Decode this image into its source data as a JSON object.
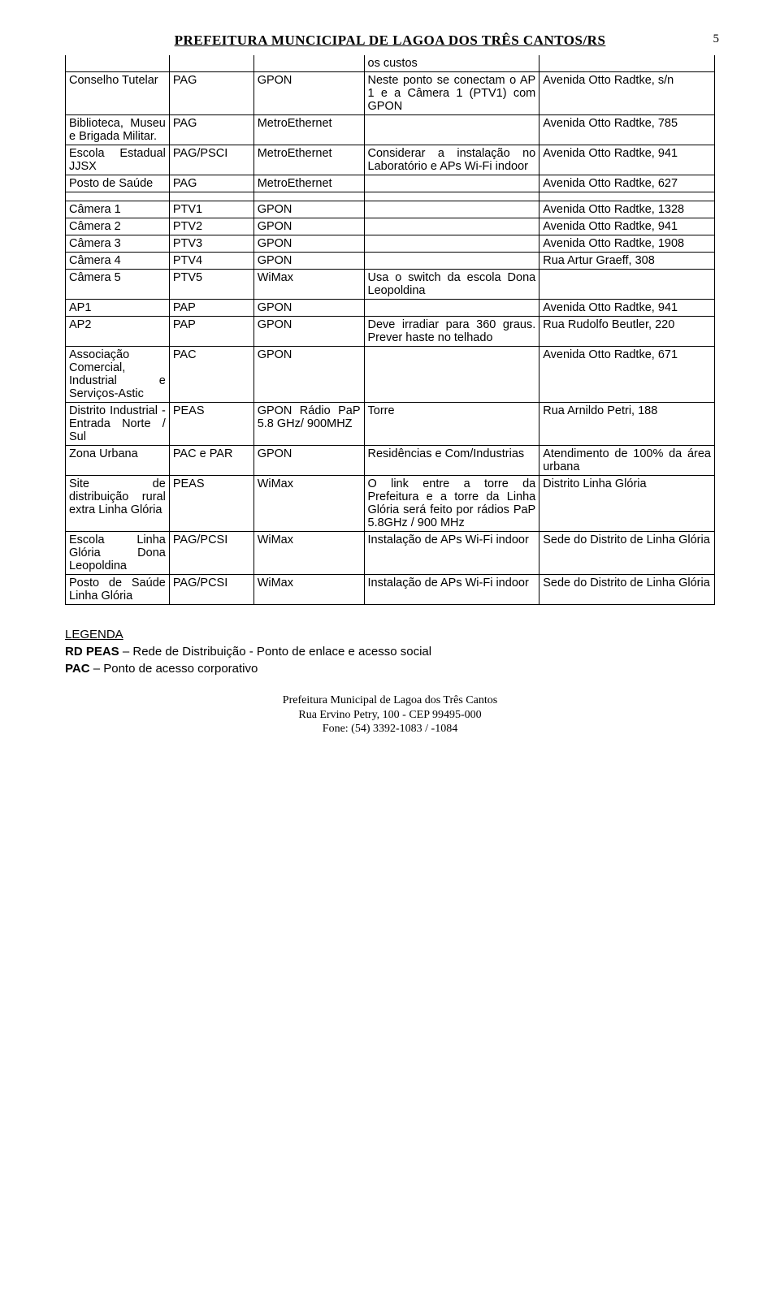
{
  "header": {
    "title": "PREFEITURA MUNCICIPAL DE LAGOA DOS TRÊS CANTOS/RS",
    "page_number": "5"
  },
  "rows": [
    {
      "c1": "",
      "c2": "",
      "c3": "",
      "c4": "os custos",
      "c5": "",
      "noborder": true
    },
    {
      "c1": "Conselho Tutelar",
      "c2": "PAG",
      "c3": "GPON",
      "c4": "Neste ponto se conectam o AP 1 e a Câmera 1 (PTV1) com GPON",
      "c5": "Avenida Otto Radtke, s/n"
    },
    {
      "c1": "Biblioteca, Museu e Brigada Militar.",
      "c2": "PAG",
      "c3": "MetroEthernet",
      "c4": "",
      "c5": "Avenida Otto Radtke, 785"
    },
    {
      "c1": "Escola Estadual JJSX",
      "c2": "PAG/PSCI",
      "c3": "MetroEthernet",
      "c4": "Considerar a instalação no Laboratório e APs Wi-Fi indoor",
      "c5": "Avenida Otto Radtke, 941"
    },
    {
      "c1": "Posto de Saúde",
      "c2": "PAG",
      "c3": "MetroEthernet",
      "c4": "",
      "c5": "Avenida Otto Radtke, 627"
    },
    {
      "spacer": true
    },
    {
      "c1": "Câmera 1",
      "c2": "PTV1",
      "c3": "GPON",
      "c4": "",
      "c5": "Avenida Otto Radtke, 1328"
    },
    {
      "c1": "Câmera 2",
      "c2": "PTV2",
      "c3": "GPON",
      "c4": "",
      "c5": "Avenida Otto Radtke, 941"
    },
    {
      "c1": "Câmera 3",
      "c2": "PTV3",
      "c3": "GPON",
      "c4": "",
      "c5": "Avenida Otto Radtke, 1908"
    },
    {
      "c1": "Câmera 4",
      "c2": "PTV4",
      "c3": "GPON",
      "c4": "",
      "c5": "Rua Artur Graeff, 308"
    },
    {
      "c1": "Câmera 5",
      "c2": "PTV5",
      "c3": "WiMax",
      "c4": "Usa o switch da escola Dona Leopoldina",
      "c5": ""
    },
    {
      "c1": "AP1",
      "c2": "PAP",
      "c3": "GPON",
      "c4": "",
      "c5": "Avenida Otto Radtke, 941"
    },
    {
      "c1": "AP2",
      "c2": "PAP",
      "c3": "GPON",
      "c4": "Deve irradiar para 360 graus. Prever haste no telhado",
      "c5": "Rua Rudolfo Beutler, 220"
    },
    {
      "c1": "Associação Comercial, Industrial e Serviços-Astic",
      "c2": "PAC",
      "c3": "GPON",
      "c4": "",
      "c5": "Avenida Otto Radtke, 671"
    },
    {
      "c1": "Distrito Industrial - Entrada Norte / Sul",
      "c2": "PEAS",
      "c3": "GPON Rádio PaP 5.8 GHz/ 900MHZ",
      "c4": "Torre",
      "c5": "Rua Arnildo Petri, 188"
    },
    {
      "c1": "Zona Urbana",
      "c2": "PAC e PAR",
      "c3": "GPON",
      "c4": "Residências e Com/Industrias",
      "c5": "Atendimento de 100% da área urbana"
    },
    {
      "c1": "Site de distribuição rural extra Linha Glória",
      "c2": "PEAS",
      "c3": "WiMax",
      "c4": "O link entre a torre da Prefeitura e a torre da Linha Glória será feito por rádios PaP 5.8GHz / 900 MHz",
      "c5": "Distrito Linha Glória"
    },
    {
      "c1": "Escola Linha Glória Dona Leopoldina",
      "c2": "PAG/PCSI",
      "c3": "WiMax",
      "c4": "Instalação de APs Wi-Fi indoor",
      "c5": "Sede do Distrito de Linha Glória"
    },
    {
      "c1": "Posto de Saúde Linha Glória",
      "c2": "PAG/PCSI",
      "c3": "WiMax",
      "c4": "Instalação de APs Wi-Fi indoor",
      "c5": "Sede do Distrito de Linha Glória"
    }
  ],
  "legend": {
    "title": "LEGENDA",
    "line1_bold": "RD PEAS",
    "line1_rest": " – Rede de Distribuição - Ponto de enlace e acesso social",
    "line2_bold": "PAC",
    "line2_rest": " – Ponto de acesso corporativo"
  },
  "footer": {
    "l1": "Prefeitura Municipal de Lagoa dos Três Cantos",
    "l2": "Rua Ervino Petry, 100 - CEP 99495-000",
    "l3": "Fone: (54) 3392-1083 / -1084"
  }
}
